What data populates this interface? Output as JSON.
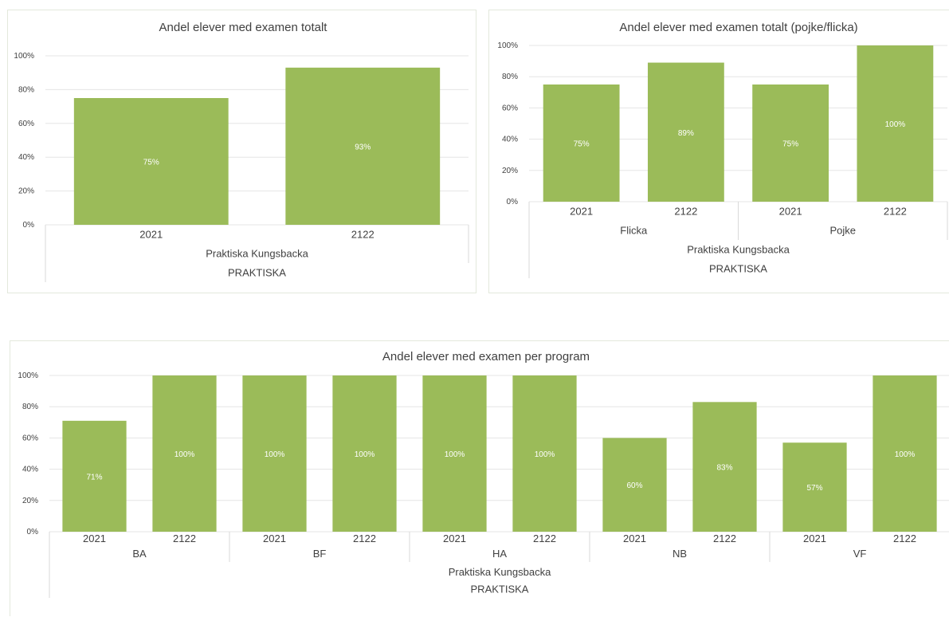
{
  "colors": {
    "bar": "#9bbb59",
    "label": "#ffffff"
  },
  "chart_data": [
    {
      "type": "bar",
      "title": "Andel elever med examen totalt",
      "categories": [
        "2021",
        "2122"
      ],
      "values": [
        75,
        93
      ],
      "data_labels": [
        "75%",
        "93%"
      ],
      "group_levels": [
        [
          {
            "label": "Praktiska Kungsbacka",
            "span": 2
          }
        ],
        [
          {
            "label": "PRAKTISKA",
            "span": 2
          }
        ]
      ],
      "y_ticks": [
        "0%",
        "20%",
        "40%",
        "60%",
        "80%",
        "100%"
      ],
      "ylim": [
        0,
        100
      ],
      "grid": true
    },
    {
      "type": "bar",
      "title": "Andel elever med examen totalt (pojke/flicka)",
      "categories": [
        "2021",
        "2122",
        "2021",
        "2122"
      ],
      "values": [
        75,
        89,
        75,
        100
      ],
      "data_labels": [
        "75%",
        "89%",
        "75%",
        "100%"
      ],
      "group_levels": [
        [
          {
            "label": "Flicka",
            "span": 2
          },
          {
            "label": "Pojke",
            "span": 2
          }
        ],
        [
          {
            "label": "Praktiska Kungsbacka",
            "span": 4
          }
        ],
        [
          {
            "label": "PRAKTISKA",
            "span": 4
          }
        ]
      ],
      "y_ticks": [
        "0%",
        "20%",
        "40%",
        "60%",
        "80%",
        "100%"
      ],
      "ylim": [
        0,
        100
      ],
      "grid": true
    },
    {
      "type": "bar",
      "title": "Andel elever med examen per program",
      "categories": [
        "2021",
        "2122",
        "2021",
        "2122",
        "2021",
        "2122",
        "2021",
        "2122",
        "2021",
        "2122"
      ],
      "values": [
        71,
        100,
        100,
        100,
        100,
        100,
        60,
        83,
        57,
        100
      ],
      "data_labels": [
        "71%",
        "100%",
        "100%",
        "100%",
        "100%",
        "100%",
        "60%",
        "83%",
        "57%",
        "100%"
      ],
      "group_levels": [
        [
          {
            "label": "BA",
            "span": 2
          },
          {
            "label": "BF",
            "span": 2
          },
          {
            "label": "HA",
            "span": 2
          },
          {
            "label": "NB",
            "span": 2
          },
          {
            "label": "VF",
            "span": 2
          }
        ],
        [
          {
            "label": "Praktiska Kungsbacka",
            "span": 10
          }
        ],
        [
          {
            "label": "PRAKTISKA",
            "span": 10
          }
        ]
      ],
      "y_ticks": [
        "0%",
        "20%",
        "40%",
        "60%",
        "80%",
        "100%"
      ],
      "ylim": [
        0,
        100
      ],
      "grid": true
    }
  ]
}
